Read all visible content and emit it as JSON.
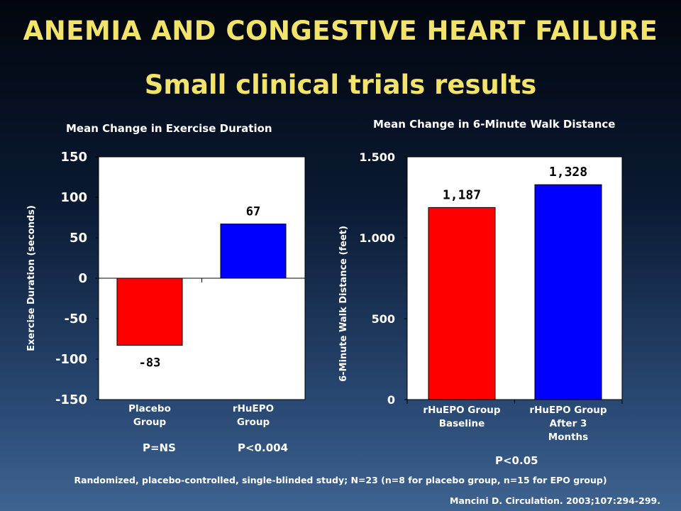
{
  "slide": {
    "title": "ANEMIA AND CONGESTIVE HEART FAILURE",
    "subtitle": "Small clinical trials results",
    "footnote": "Randomized, placebo-controlled, single-blinded study; N=23 (n=8 for placebo group, n=15 for EPO group)",
    "citation": "Mancini D. Circulation. 2003;107:294-299.",
    "title_color": "#f2e36b"
  },
  "chart_data": [
    {
      "type": "bar",
      "title": "Mean Change in Exercise Duration",
      "ylabel": "Exercise Duration (seconds)",
      "xlabel": "",
      "categories": [
        "Placebo Group",
        "rHuEPO Group"
      ],
      "category_lines": [
        [
          "Placebo",
          "Group"
        ],
        [
          "rHuEPO",
          "Group"
        ]
      ],
      "values": [
        -83,
        67
      ],
      "data_labels": [
        "-83",
        "67"
      ],
      "bar_colors": [
        "#ff0000",
        "#0000ff"
      ],
      "ylim": [
        -150,
        150
      ],
      "yticks": [
        150,
        100,
        50,
        0,
        -50,
        -100,
        -150
      ],
      "ytick_labels": [
        "150",
        "100",
        "50",
        "0",
        "-50",
        "-100",
        "-150"
      ],
      "grid": false,
      "plot_background": "#ffffff",
      "p_values": [
        "P=NS",
        "P<0.004"
      ]
    },
    {
      "type": "bar",
      "title": "Mean Change in 6-Minute Walk Distance",
      "ylabel": "6-Minute Walk Distance (feet)",
      "xlabel": "",
      "categories": [
        "rHuEPO Group Baseline",
        "rHuEPO Group After 3 Months"
      ],
      "category_lines": [
        [
          "rHuEPO Group",
          "Baseline"
        ],
        [
          "rHuEPO Group",
          "After 3",
          "Months"
        ]
      ],
      "values": [
        1187,
        1328
      ],
      "data_labels": [
        "1,187",
        "1,328"
      ],
      "bar_colors": [
        "#ff0000",
        "#0000ff"
      ],
      "ylim": [
        0,
        1500
      ],
      "yticks": [
        1500,
        1000,
        500,
        0
      ],
      "ytick_labels": [
        "1.500",
        "1.000",
        "500",
        "0"
      ],
      "grid": false,
      "plot_background": "#ffffff",
      "p_values": [
        "P<0.05"
      ]
    }
  ]
}
